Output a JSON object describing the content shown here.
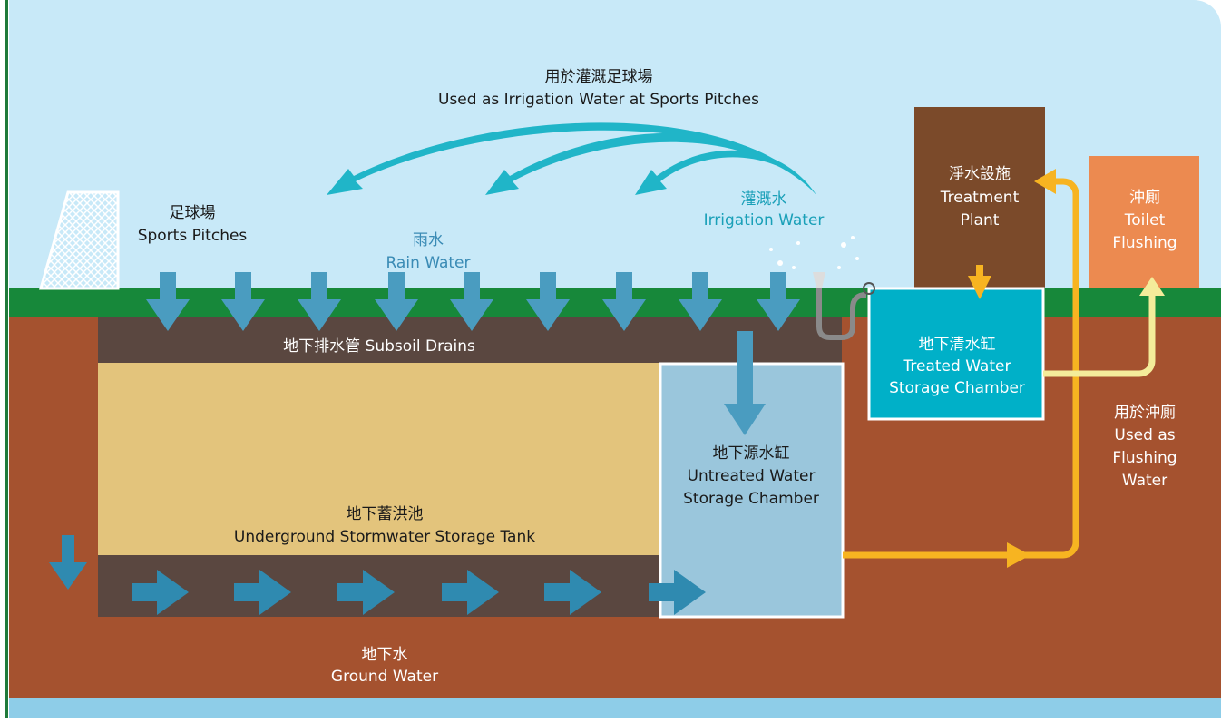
{
  "title": {
    "zh": "用於灌溉足球場",
    "en": "Used as Irrigation Water at Sports Pitches"
  },
  "sports_pitches": {
    "zh": "足球場",
    "en": "Sports Pitches"
  },
  "rain_water": {
    "zh": "雨水",
    "en": "Rain Water"
  },
  "irrigation_water": {
    "zh": "灌溉水",
    "en": "Irrigation Water"
  },
  "treatment_plant": {
    "zh": "淨水設施",
    "en": [
      "Treatment",
      "Plant"
    ]
  },
  "toilet_flushing": {
    "zh": "沖廁",
    "en": [
      "Toilet",
      "Flushing"
    ]
  },
  "subsoil_drains": "地下排水管 Subsoil Drains",
  "treated_chamber": {
    "zh": "地下清水缸",
    "en": [
      "Treated Water",
      "Storage Chamber"
    ]
  },
  "flushing_water": {
    "zh": "用於沖廁",
    "en": [
      "Used as",
      "Flushing",
      "Water"
    ]
  },
  "untreated_chamber": {
    "zh": "地下源水缸",
    "en": [
      "Untreated Water",
      "Storage Chamber"
    ]
  },
  "storage_tank": {
    "zh": "地下蓄洪池",
    "en": "Underground Stormwater Storage Tank"
  },
  "ground_water": {
    "zh": "地下水",
    "en": "Ground Water"
  }
}
